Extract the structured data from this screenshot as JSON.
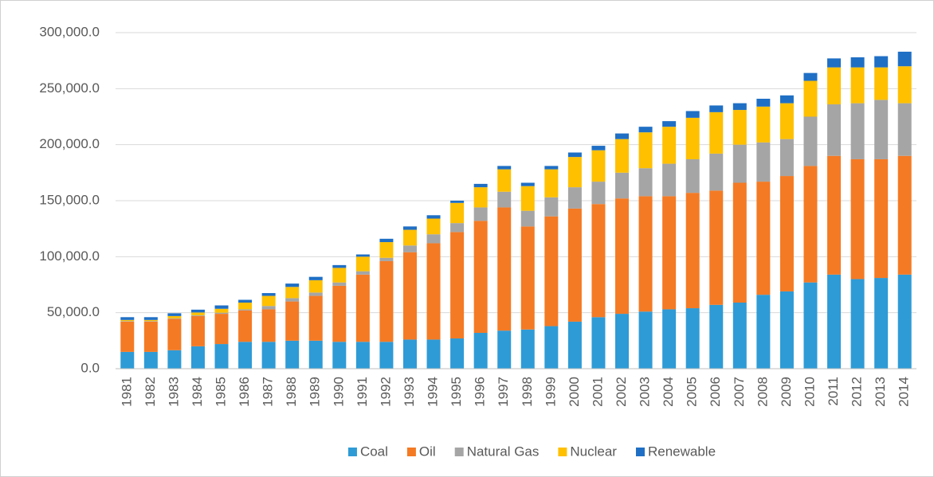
{
  "chart_data": {
    "type": "stacked_bar",
    "categories": [
      "1981",
      "1982",
      "1983",
      "1984",
      "1985",
      "1986",
      "1987",
      "1988",
      "1989",
      "1990",
      "1991",
      "1992",
      "1993",
      "1994",
      "1995",
      "1996",
      "1997",
      "1998",
      "1999",
      "2000",
      "2001",
      "2002",
      "2003",
      "2004",
      "2005",
      "2006",
      "2007",
      "2008",
      "2009",
      "2010",
      "2011",
      "2012",
      "2013",
      "2014"
    ],
    "series": [
      {
        "name": "Coal",
        "color": "#2e9bd6",
        "values": [
          15000,
          15000,
          16500,
          20000,
          22000,
          24000,
          24000,
          25000,
          25000,
          24000,
          24000,
          24000,
          26000,
          26000,
          27000,
          32000,
          34000,
          35000,
          38000,
          42000,
          46000,
          49000,
          51000,
          53000,
          54000,
          57000,
          59000,
          66000,
          69000,
          77000,
          84000,
          80000,
          81000,
          84000
        ]
      },
      {
        "name": "Oil",
        "color": "#f47a24",
        "values": [
          27000,
          27000,
          28000,
          27000,
          27000,
          28000,
          29000,
          35000,
          40000,
          50000,
          60000,
          72000,
          78000,
          86000,
          95000,
          100000,
          110000,
          92000,
          98000,
          101000,
          101000,
          103000,
          103000,
          101000,
          103000,
          102000,
          107000,
          101000,
          103000,
          104000,
          106000,
          107000,
          106000,
          106000
        ]
      },
      {
        "name": "Natural Gas",
        "color": "#a5a5a5",
        "values": [
          500,
          500,
          500,
          700,
          1000,
          1000,
          3000,
          3000,
          3000,
          3000,
          3000,
          3000,
          6000,
          8000,
          8000,
          12000,
          14000,
          14000,
          17000,
          19000,
          20000,
          23000,
          25000,
          29000,
          30000,
          33000,
          34000,
          35000,
          33000,
          44000,
          46000,
          50000,
          53000,
          47000
        ]
      },
      {
        "name": "Nuclear",
        "color": "#ffc000",
        "values": [
          1000,
          1000,
          2000,
          2500,
          3500,
          6000,
          9000,
          10000,
          11000,
          13000,
          13000,
          14000,
          14000,
          14000,
          18000,
          18000,
          20000,
          22000,
          25000,
          27000,
          28000,
          30000,
          32000,
          33000,
          37000,
          37000,
          31000,
          32000,
          32000,
          32000,
          33000,
          32000,
          29000,
          33000
        ]
      },
      {
        "name": "Renewable",
        "color": "#1f6fc5",
        "values": [
          2500,
          2500,
          2500,
          2500,
          3000,
          2500,
          2500,
          3000,
          3000,
          2500,
          2000,
          3000,
          3000,
          3000,
          2000,
          3000,
          3000,
          3000,
          3000,
          4000,
          4000,
          5000,
          5000,
          5000,
          6000,
          6000,
          6000,
          7000,
          7000,
          7000,
          8000,
          9000,
          10000,
          13000
        ]
      }
    ],
    "ylim": [
      0,
      300000
    ],
    "yticks": [
      {
        "value": 0,
        "label": "0.0"
      },
      {
        "value": 50000,
        "label": "50,000.0"
      },
      {
        "value": 100000,
        "label": "100,000.0"
      },
      {
        "value": 150000,
        "label": "150,000.0"
      },
      {
        "value": 200000,
        "label": "200,000.0"
      },
      {
        "value": 250000,
        "label": "250,000.0"
      },
      {
        "value": 300000,
        "label": "300,000.0"
      }
    ],
    "grid": true,
    "legend": "bottom"
  }
}
